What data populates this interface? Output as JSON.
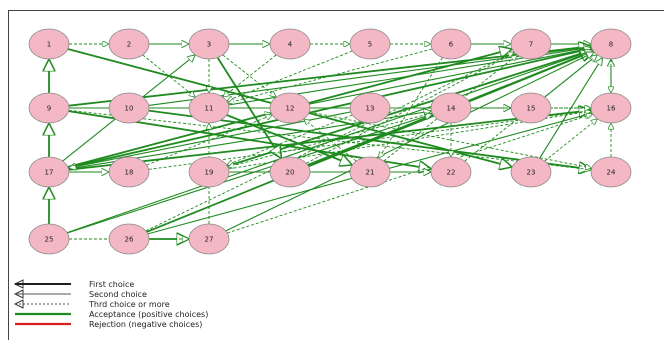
{
  "nodes": [
    {
      "id": "1",
      "row": 0,
      "col": 0
    },
    {
      "id": "2",
      "row": 0,
      "col": 1
    },
    {
      "id": "3",
      "row": 0,
      "col": 2
    },
    {
      "id": "4",
      "row": 0,
      "col": 3
    },
    {
      "id": "5",
      "row": 0,
      "col": 4
    },
    {
      "id": "6",
      "row": 0,
      "col": 5
    },
    {
      "id": "7",
      "row": 0,
      "col": 6
    },
    {
      "id": "8",
      "row": 0,
      "col": 7
    },
    {
      "id": "9",
      "row": 1,
      "col": 0
    },
    {
      "id": "10",
      "row": 1,
      "col": 1
    },
    {
      "id": "11",
      "row": 1,
      "col": 2
    },
    {
      "id": "12",
      "row": 1,
      "col": 3
    },
    {
      "id": "13",
      "row": 1,
      "col": 4
    },
    {
      "id": "14",
      "row": 1,
      "col": 5
    },
    {
      "id": "15",
      "row": 1,
      "col": 6
    },
    {
      "id": "16",
      "row": 1,
      "col": 7
    },
    {
      "id": "17",
      "row": 2,
      "col": 0
    },
    {
      "id": "18",
      "row": 2,
      "col": 1
    },
    {
      "id": "19",
      "row": 2,
      "col": 2
    },
    {
      "id": "20",
      "row": 2,
      "col": 3
    },
    {
      "id": "21",
      "row": 2,
      "col": 4
    },
    {
      "id": "22",
      "row": 2,
      "col": 5
    },
    {
      "id": "23",
      "row": 2,
      "col": 6
    },
    {
      "id": "24",
      "row": 2,
      "col": 7
    },
    {
      "id": "25",
      "row": 3,
      "col": 0
    },
    {
      "id": "26",
      "row": 3,
      "col": 1
    },
    {
      "id": "27",
      "row": 3,
      "col": 2
    }
  ],
  "edges": [
    {
      "from": "1",
      "to": "2",
      "style": "third"
    },
    {
      "from": "2",
      "to": "3",
      "style": "second"
    },
    {
      "from": "3",
      "to": "4",
      "style": "second"
    },
    {
      "from": "4",
      "to": "5",
      "style": "third"
    },
    {
      "from": "5",
      "to": "6",
      "style": "third"
    },
    {
      "from": "6",
      "to": "7",
      "style": "second"
    },
    {
      "from": "7",
      "to": "8",
      "style": "second"
    },
    {
      "from": "25",
      "to": "17",
      "style": "first"
    },
    {
      "from": "17",
      "to": "9",
      "style": "first"
    },
    {
      "from": "9",
      "to": "1",
      "style": "first"
    },
    {
      "from": "1",
      "to": "23",
      "style": "first"
    },
    {
      "from": "17",
      "to": "8",
      "style": "first"
    },
    {
      "from": "17",
      "to": "7",
      "style": "first"
    },
    {
      "from": "17",
      "to": "16",
      "style": "first"
    },
    {
      "from": "9",
      "to": "8",
      "style": "first"
    },
    {
      "from": "9",
      "to": "22",
      "style": "first"
    },
    {
      "from": "11",
      "to": "21",
      "style": "first"
    },
    {
      "from": "10",
      "to": "24",
      "style": "first"
    },
    {
      "from": "26",
      "to": "8",
      "style": "first"
    },
    {
      "from": "26",
      "to": "27",
      "style": "first"
    },
    {
      "from": "19",
      "to": "8",
      "style": "first"
    },
    {
      "from": "20",
      "to": "8",
      "style": "first"
    },
    {
      "from": "3",
      "to": "20",
      "style": "first"
    },
    {
      "from": "11",
      "to": "8",
      "style": "second"
    },
    {
      "from": "10",
      "to": "8",
      "style": "second"
    },
    {
      "from": "9",
      "to": "15",
      "style": "second"
    },
    {
      "from": "10",
      "to": "15",
      "style": "second"
    },
    {
      "from": "17",
      "to": "14",
      "style": "second"
    },
    {
      "from": "17",
      "to": "18",
      "style": "second"
    },
    {
      "from": "17",
      "to": "3",
      "style": "second"
    },
    {
      "from": "19",
      "to": "22",
      "style": "second"
    },
    {
      "from": "21",
      "to": "22",
      "style": "second"
    },
    {
      "from": "13",
      "to": "17",
      "style": "second"
    },
    {
      "from": "12",
      "to": "8",
      "style": "second"
    },
    {
      "from": "14",
      "to": "8",
      "style": "second"
    },
    {
      "from": "15",
      "to": "8",
      "style": "second"
    },
    {
      "from": "16",
      "to": "8",
      "style": "second"
    },
    {
      "from": "25",
      "to": "8",
      "style": "second"
    },
    {
      "from": "26",
      "to": "16",
      "style": "second"
    },
    {
      "from": "27",
      "to": "8",
      "style": "second"
    },
    {
      "from": "25",
      "to": "14",
      "style": "second"
    },
    {
      "from": "23",
      "to": "8",
      "style": "second"
    },
    {
      "from": "24",
      "to": "16",
      "style": "third"
    },
    {
      "from": "3",
      "to": "11",
      "style": "third"
    },
    {
      "from": "3",
      "to": "12",
      "style": "third"
    },
    {
      "from": "4",
      "to": "11",
      "style": "third"
    },
    {
      "from": "5",
      "to": "11",
      "style": "third"
    },
    {
      "from": "2",
      "to": "11",
      "style": "third"
    },
    {
      "from": "6",
      "to": "21",
      "style": "third"
    },
    {
      "from": "13",
      "to": "19",
      "style": "third"
    },
    {
      "from": "12",
      "to": "16",
      "style": "third"
    },
    {
      "from": "11",
      "to": "16",
      "style": "third"
    },
    {
      "from": "10",
      "to": "16",
      "style": "third"
    },
    {
      "from": "18",
      "to": "16",
      "style": "third"
    },
    {
      "from": "19",
      "to": "16",
      "style": "third"
    },
    {
      "from": "9",
      "to": "24",
      "style": "third"
    },
    {
      "from": "14",
      "to": "19",
      "style": "third"
    },
    {
      "from": "20",
      "to": "7",
      "style": "third"
    },
    {
      "from": "21",
      "to": "7",
      "style": "third"
    },
    {
      "from": "22",
      "to": "8",
      "style": "third"
    },
    {
      "from": "23",
      "to": "16",
      "style": "third"
    },
    {
      "from": "27",
      "to": "16",
      "style": "third"
    },
    {
      "from": "26",
      "to": "7",
      "style": "third"
    },
    {
      "from": "25",
      "to": "27",
      "style": "third"
    },
    {
      "from": "17",
      "to": "12",
      "style": "third"
    },
    {
      "from": "18",
      "to": "12",
      "style": "third"
    },
    {
      "from": "21",
      "to": "12",
      "style": "third"
    },
    {
      "from": "27",
      "to": "11",
      "style": "third"
    },
    {
      "from": "9",
      "to": "16",
      "style": "third"
    },
    {
      "from": "14",
      "to": "22",
      "style": "third"
    },
    {
      "from": "12",
      "to": "24",
      "style": "third"
    },
    {
      "from": "6",
      "to": "11",
      "style": "third"
    },
    {
      "from": "8",
      "to": "16",
      "style": "third"
    }
  ],
  "colors": {
    "node_fill": "#f4b8c4",
    "node_stroke": "#8a8a8a",
    "acceptance": "#1f8a1f",
    "rejection": "#d62020",
    "first": "#1f1f1f",
    "second": "#555555",
    "third": "#555555"
  },
  "legend": {
    "first_choice": "First choice",
    "second_choice": "Second choice",
    "third_choice": "Thrd choice or more",
    "acceptance": "Acceptance (positive choices)",
    "rejection": "Rejection (negative choices)"
  }
}
